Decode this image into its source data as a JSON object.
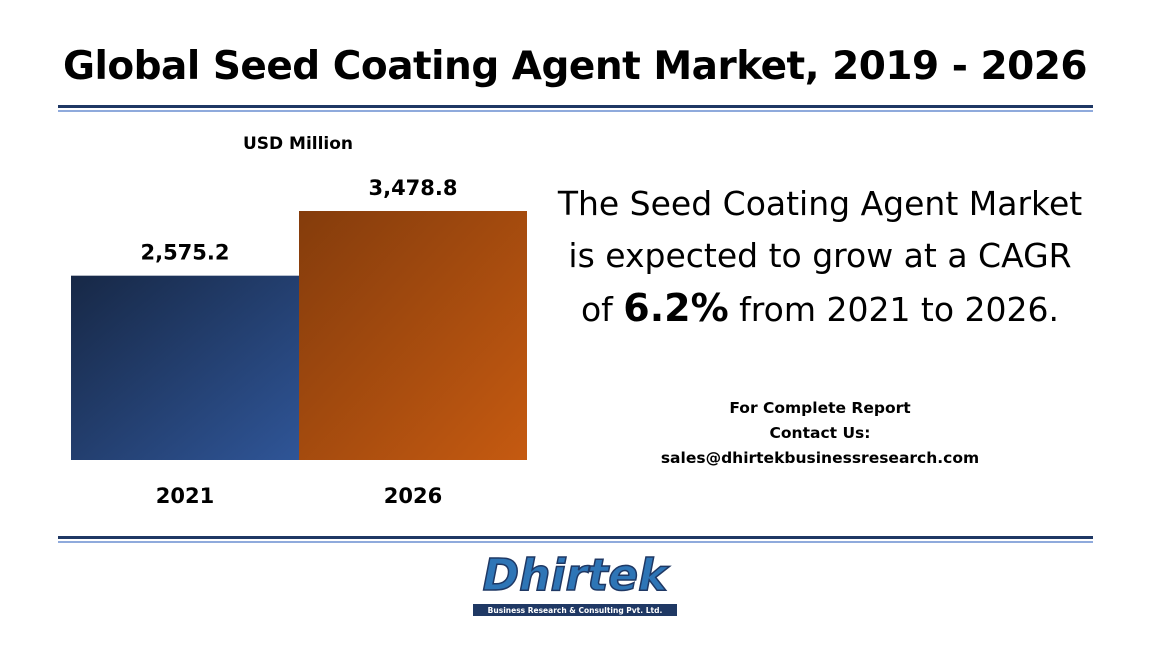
{
  "title": "Global Seed Coating Agent Market, 2019 - 2026",
  "chart_data": {
    "type": "bar",
    "unit_label": "USD Million",
    "categories": [
      "2021",
      "2026"
    ],
    "values": [
      2575.2,
      3478.8
    ],
    "value_labels": [
      "2,575.2",
      "3,478.8"
    ],
    "colors": [
      [
        "#172846",
        "#2f5597"
      ],
      [
        "#843c0c",
        "#c55a11"
      ]
    ]
  },
  "summary": {
    "lines": [
      "The Seed Coating Agent Market",
      "is expected to grow at a CAGR"
    ],
    "prefix": "of",
    "highlight": "6.2%",
    "suffix": "from 2021 to 2026."
  },
  "contact": {
    "lines": [
      "For Complete Report",
      "Contact Us:",
      "sales@dhirtekbusinessresearch.com"
    ]
  },
  "logo": {
    "name": "Dhirtek",
    "tagline": "Business Research & Consulting Pvt. Ltd."
  }
}
